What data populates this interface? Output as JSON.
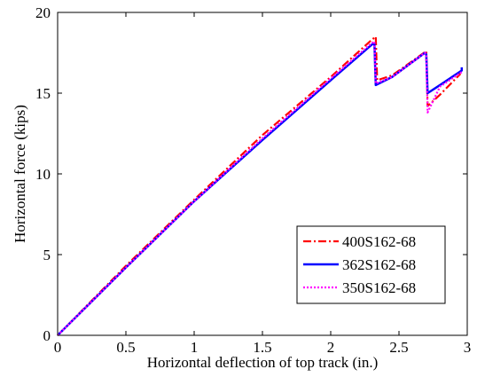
{
  "chart_data": {
    "type": "line",
    "xlabel": "Horizontal deflection of top track (in.)",
    "ylabel": "Horizontal force (kips)",
    "xlim": [
      0,
      3
    ],
    "ylim": [
      0,
      20
    ],
    "xticks": [
      0,
      0.5,
      1,
      1.5,
      2,
      2.5,
      3
    ],
    "yticks": [
      0,
      5,
      10,
      15,
      20
    ],
    "xtick_labels": [
      "0",
      "0.5",
      "1",
      "1.5",
      "2",
      "2.5",
      "3"
    ],
    "ytick_labels": [
      "0",
      "5",
      "10",
      "15",
      "20"
    ],
    "grid": false,
    "legend_position": "lower-right",
    "series": [
      {
        "name": "400S162-68",
        "color": "#ff0000",
        "dash": "dash-dot",
        "points": [
          [
            0,
            0
          ],
          [
            0.5,
            4.3
          ],
          [
            1,
            8.4
          ],
          [
            1.5,
            12.4
          ],
          [
            2,
            16.0
          ],
          [
            2.3,
            18.3
          ],
          [
            2.33,
            18.5
          ],
          [
            2.34,
            15.8
          ],
          [
            2.45,
            16.1
          ],
          [
            2.7,
            17.6
          ],
          [
            2.71,
            14.2
          ],
          [
            2.8,
            14.9
          ],
          [
            2.95,
            16.2
          ]
        ]
      },
      {
        "name": "362S162-68",
        "color": "#0000ff",
        "dash": "solid",
        "points": [
          [
            0,
            0
          ],
          [
            0.5,
            4.2
          ],
          [
            1,
            8.3
          ],
          [
            1.5,
            12.1
          ],
          [
            2,
            15.8
          ],
          [
            2.3,
            18.0
          ],
          [
            2.32,
            18.1
          ],
          [
            2.33,
            15.5
          ],
          [
            2.45,
            16.0
          ],
          [
            2.69,
            17.5
          ],
          [
            2.7,
            17.4
          ],
          [
            2.71,
            15.0
          ],
          [
            2.8,
            15.5
          ],
          [
            2.96,
            16.4
          ],
          [
            2.96,
            16.6
          ]
        ]
      },
      {
        "name": "350S162-68",
        "color": "#ff00ff",
        "dash": "dotted",
        "points": [
          [
            0,
            0
          ],
          [
            0.5,
            4.2
          ],
          [
            1,
            8.3
          ],
          [
            1.5,
            12.2
          ],
          [
            2,
            15.9
          ],
          [
            2.3,
            18.1
          ],
          [
            2.32,
            18.2
          ],
          [
            2.33,
            15.6
          ],
          [
            2.45,
            16.0
          ],
          [
            2.69,
            17.5
          ],
          [
            2.7,
            17.3
          ],
          [
            2.71,
            13.8
          ],
          [
            2.8,
            15.4
          ],
          [
            2.96,
            16.3
          ]
        ]
      }
    ]
  }
}
